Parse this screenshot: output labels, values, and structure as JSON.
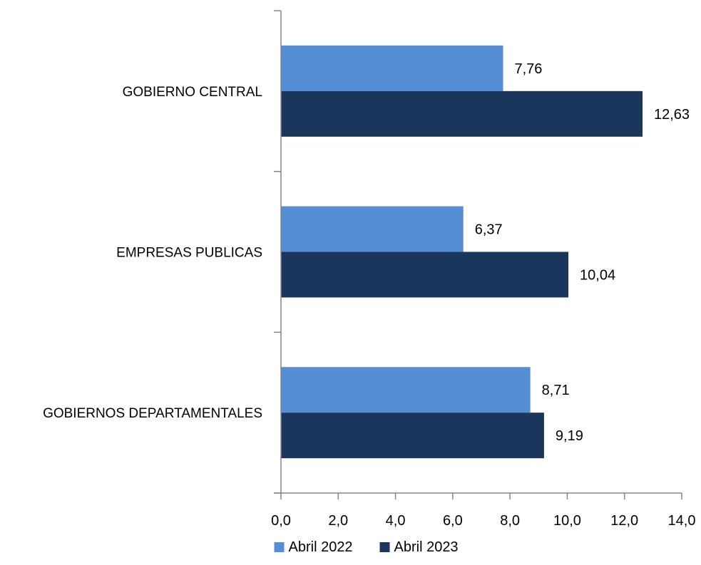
{
  "chart_data": {
    "type": "bar",
    "orientation": "horizontal",
    "categories": [
      "GOBIERNO CENTRAL",
      "EMPRESAS PUBLICAS",
      "GOBIERNOS DEPARTAMENTALES"
    ],
    "series": [
      {
        "name": "Abril 2022",
        "color": "#558ed5",
        "values": [
          7.76,
          6.37,
          8.71
        ],
        "labels": [
          "7,76",
          "6,37",
          "8,71"
        ]
      },
      {
        "name": "Abril 2023",
        "color": "#1b365d",
        "values": [
          12.63,
          10.04,
          9.19
        ],
        "labels": [
          "12,63",
          "10,04",
          "9,19"
        ]
      }
    ],
    "xlim": [
      0,
      14
    ],
    "x_ticks": [
      "0,0",
      "2,0",
      "4,0",
      "6,0",
      "8,0",
      "10,0",
      "12,0",
      "14,0"
    ],
    "title": "",
    "xlabel": "",
    "ylabel": "",
    "grid": false,
    "legend_position": "bottom"
  }
}
